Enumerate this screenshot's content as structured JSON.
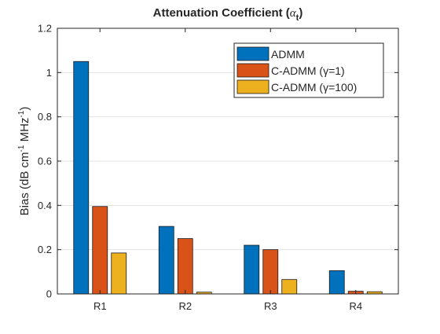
{
  "chart_data": {
    "type": "bar",
    "title_main": "Attenuation Coefficient (",
    "title_symbol": "α",
    "title_subscript": "t",
    "title_end": ")",
    "ylabel_main": "Bias (dB cm",
    "ylabel_sup1": "-1",
    "ylabel_mid": " MHz",
    "ylabel_sup2": "-1",
    "ylabel_end": ")",
    "xlabel": "",
    "categories": [
      "R1",
      "R2",
      "R3",
      "R4"
    ],
    "ylim": [
      0,
      1.2
    ],
    "yticks": [
      "0",
      "0.2",
      "0.4",
      "0.6",
      "0.8",
      "1",
      "1.2"
    ],
    "grid": true,
    "legend_position": "top-right",
    "series": [
      {
        "name": "ADMM",
        "color": "#0072BD",
        "values": [
          1.05,
          0.305,
          0.22,
          0.105
        ]
      },
      {
        "name": "C-ADMM (γ=1)",
        "color": "#D95319",
        "values": [
          0.395,
          0.25,
          0.2,
          0.012
        ]
      },
      {
        "name": "C-ADMM (γ=100)",
        "color": "#EDB120",
        "values": [
          0.185,
          0.008,
          0.065,
          0.01
        ]
      }
    ]
  }
}
